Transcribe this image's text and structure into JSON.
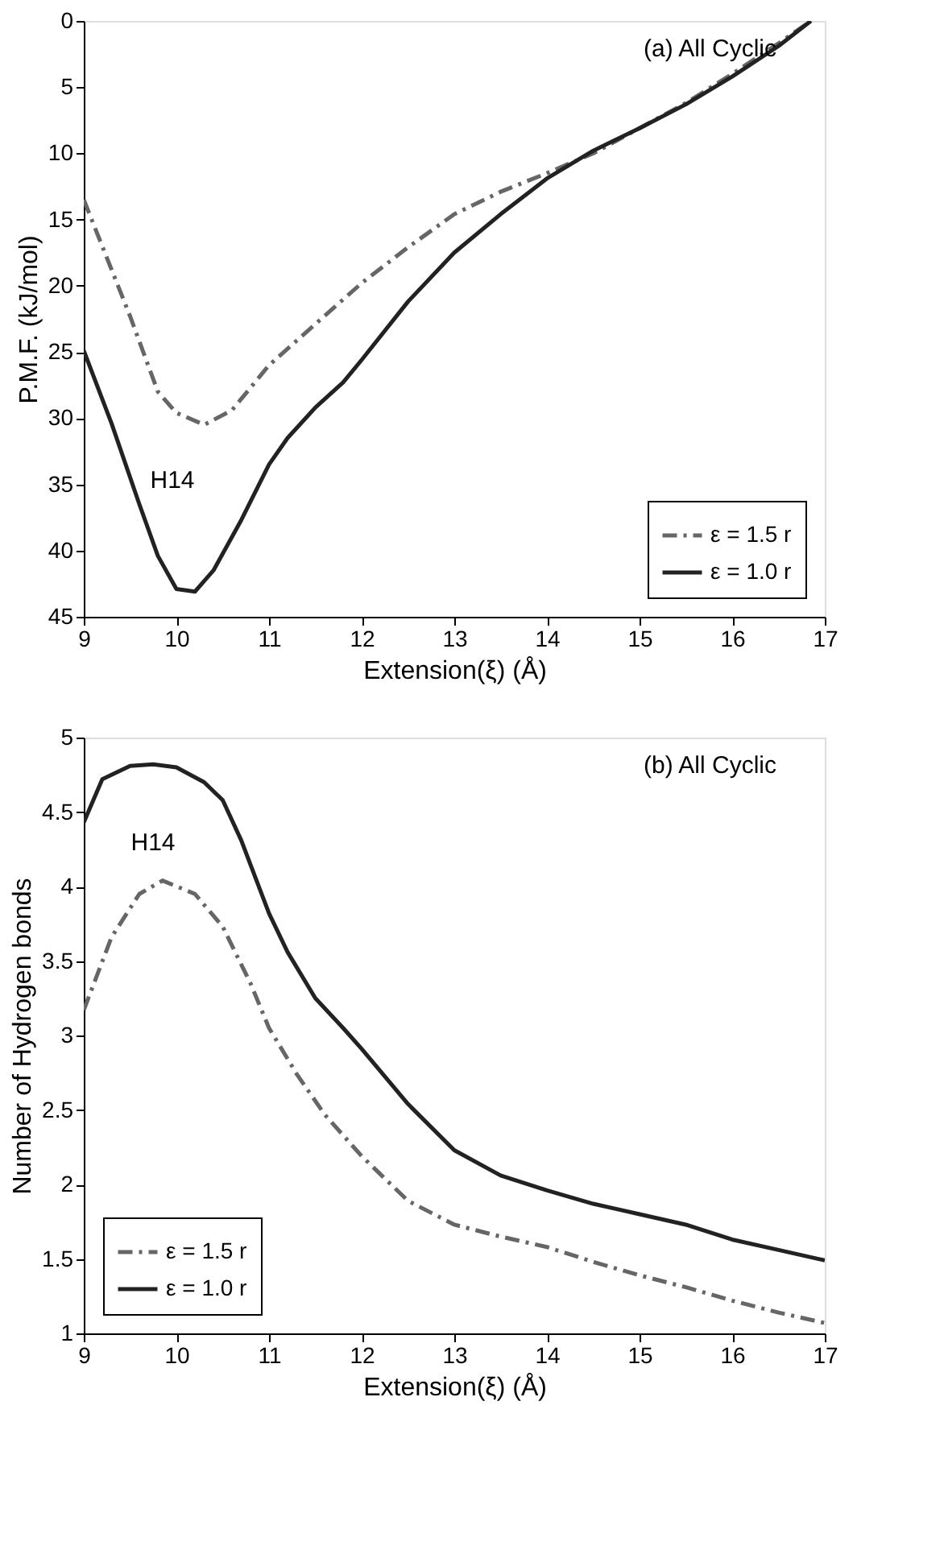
{
  "chart_data": [
    {
      "type": "line",
      "xlabel": "Extension(ξ) (Å)",
      "ylabel": "P.M.F. (kJ/mol)",
      "xlim": [
        9,
        17
      ],
      "ylim": [
        45,
        0
      ],
      "xticks": [
        9,
        10,
        11,
        12,
        13,
        14,
        15,
        16,
        17
      ],
      "yticks": [
        0,
        5,
        10,
        15,
        20,
        25,
        30,
        35,
        40,
        45
      ],
      "grid": false,
      "legend": "bottom right",
      "marker": "none",
      "annotations": [
        "(a) All Cyclic",
        "H14"
      ],
      "series": [
        {
          "name": "ε = 1.5 r",
          "color": "#666666",
          "line_style": "dashed",
          "x": [
            9,
            9.5,
            9.8,
            10,
            10.3,
            10.6,
            11,
            11.5,
            12,
            12.5,
            13,
            13.5,
            14,
            14.5,
            15,
            15.5,
            16,
            16.5,
            16.85
          ],
          "values": [
            13.5,
            22.3,
            28,
            29.6,
            30.5,
            29.4,
            26,
            22.9,
            19.8,
            17.1,
            14.6,
            12.9,
            11.5,
            10,
            8.1,
            6.2,
            4,
            1.7,
            0
          ]
        },
        {
          "name": "ε = 1.0 r",
          "color": "#222222",
          "line_style": "solid",
          "x": [
            9,
            9.3,
            9.6,
            9.8,
            10,
            10.2,
            10.4,
            10.7,
            11,
            11.2,
            11.5,
            11.8,
            12,
            12.5,
            13,
            13.5,
            14,
            14.5,
            15,
            15.5,
            16,
            16.5,
            16.85
          ],
          "values": [
            24.9,
            30.4,
            36.5,
            40.4,
            42.9,
            43.1,
            41.5,
            37.7,
            33.5,
            31.5,
            29.2,
            27.3,
            25.6,
            21.2,
            17.5,
            14.6,
            11.9,
            9.8,
            8.1,
            6.3,
            4.2,
            1.9,
            0
          ]
        }
      ]
    },
    {
      "type": "line",
      "xlabel": "Extension(ξ) (Å)",
      "ylabel": "Number of Hydrogen bonds",
      "xlim": [
        9,
        17
      ],
      "ylim": [
        1,
        5
      ],
      "xticks": [
        9,
        10,
        11,
        12,
        13,
        14,
        15,
        16,
        17
      ],
      "yticks": [
        1,
        1.5,
        2,
        2.5,
        3,
        3.5,
        4,
        4.5,
        5
      ],
      "grid": false,
      "legend": "bottom left",
      "marker": "none",
      "annotations": [
        "(b) All Cyclic",
        "H14"
      ],
      "series": [
        {
          "name": "ε = 1.5 r",
          "color": "#666666",
          "line_style": "dashed",
          "x": [
            9,
            9.3,
            9.6,
            9.85,
            10.2,
            10.5,
            10.8,
            11,
            11.3,
            11.6,
            12,
            12.5,
            13,
            13.5,
            14,
            14.5,
            15,
            15.5,
            16,
            16.5,
            17
          ],
          "values": [
            3.17,
            3.66,
            3.95,
            4.04,
            3.95,
            3.73,
            3.35,
            3.05,
            2.74,
            2.47,
            2.19,
            1.89,
            1.73,
            1.65,
            1.58,
            1.48,
            1.39,
            1.31,
            1.22,
            1.14,
            1.07
          ]
        },
        {
          "name": "ε = 1.0 r",
          "color": "#222222",
          "line_style": "solid",
          "x": [
            9,
            9.2,
            9.5,
            9.75,
            10,
            10.3,
            10.5,
            10.7,
            11,
            11.2,
            11.5,
            11.8,
            12,
            12.5,
            13,
            13.5,
            14,
            14.5,
            15,
            15.5,
            16,
            16.5,
            17
          ],
          "values": [
            4.43,
            4.72,
            4.81,
            4.82,
            4.8,
            4.7,
            4.58,
            4.31,
            3.82,
            3.56,
            3.25,
            3.05,
            2.91,
            2.54,
            2.23,
            2.06,
            1.96,
            1.87,
            1.8,
            1.73,
            1.63,
            1.56,
            1.49
          ]
        }
      ]
    }
  ]
}
